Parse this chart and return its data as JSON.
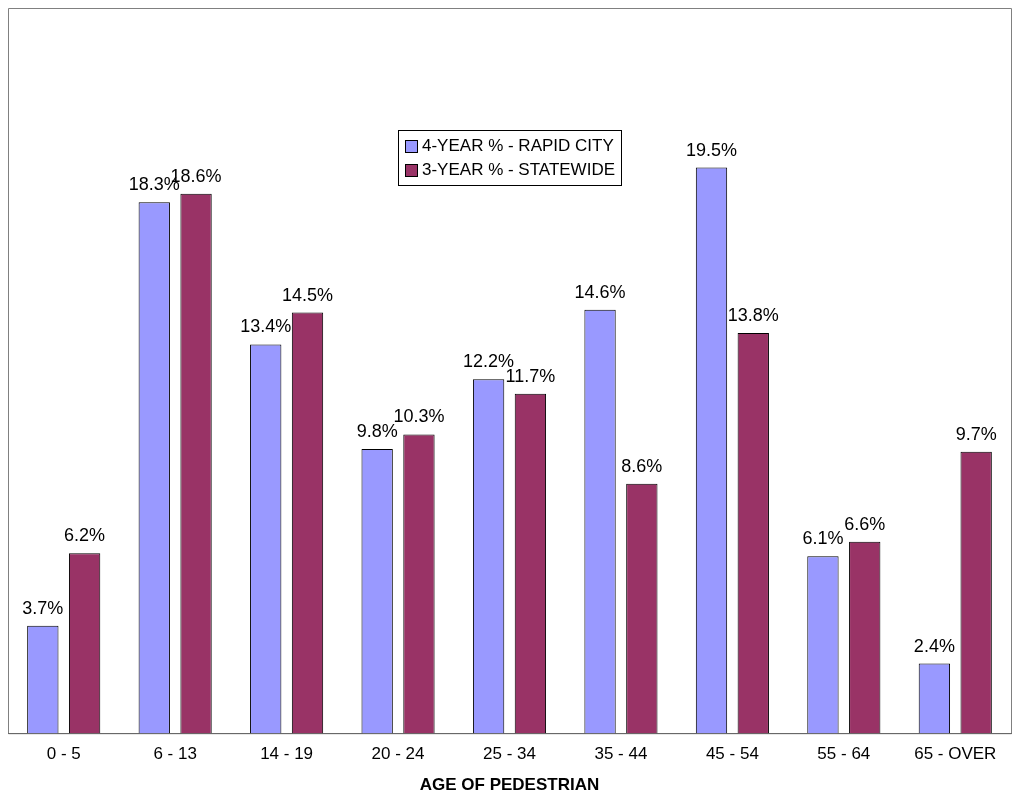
{
  "chart_data": {
    "type": "bar",
    "xlabel": "AGE OF PEDESTRIAN",
    "categories": [
      "0 - 5",
      "6 - 13",
      "14 - 19",
      "20 - 24",
      "25 - 34",
      "35 - 44",
      "45 - 54",
      "55 - 64",
      "65 - OVER"
    ],
    "series": [
      {
        "name": "4-YEAR % - RAPID CITY",
        "color": "#9999ff",
        "values": [
          3.7,
          18.3,
          13.4,
          9.8,
          12.2,
          14.6,
          19.5,
          6.1,
          2.4
        ],
        "value_labels": [
          "3.7%",
          "18.3%",
          "13.4%",
          "9.8%",
          "12.2%",
          "14.6%",
          "19.5%",
          "6.1%",
          "2.4%"
        ]
      },
      {
        "name": "3-YEAR % - STATEWIDE",
        "color": "#993366",
        "values": [
          6.2,
          18.6,
          14.5,
          10.3,
          11.7,
          8.6,
          13.8,
          6.6,
          9.7
        ],
        "value_labels": [
          "6.2%",
          "18.6%",
          "14.5%",
          "10.3%",
          "11.7%",
          "8.6%",
          "13.8%",
          "6.6%",
          "9.7%"
        ]
      }
    ],
    "grid": false,
    "legend": "top",
    "tick_labels": "x"
  }
}
